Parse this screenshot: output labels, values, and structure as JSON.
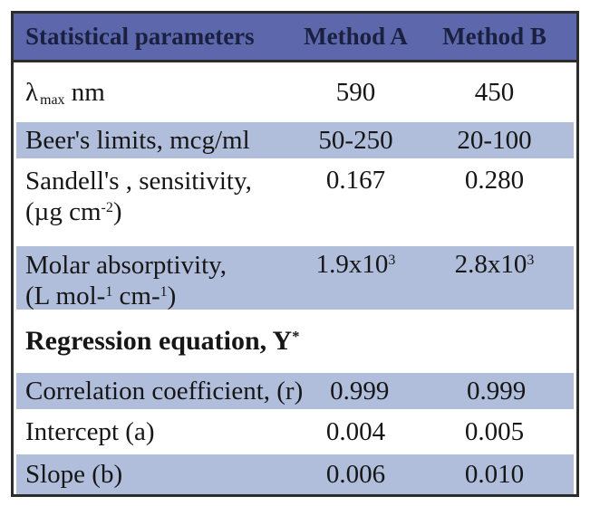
{
  "colors": {
    "header_bg": "#5c68ab",
    "row_alt_bg": "#b0bedc",
    "border": "#2c2c2c",
    "header_text": "#1b2040",
    "body_text": "#161616"
  },
  "table": {
    "columns": [
      "Statistical parameters",
      "Method A",
      "Method B"
    ],
    "rows": {
      "lambda": {
        "sym": "λ",
        "sub": "max",
        "unit": " nm",
        "a": "590",
        "b": "450"
      },
      "beers": {
        "label": "Beer's limits, mcg/ml",
        "a": "50-250",
        "b": "20-100"
      },
      "sandell": {
        "line1": "Sandell's , sensitivity,",
        "line2_open": "(µg cm",
        "line2_sup": "-2",
        "line2_close": ")",
        "a": "0.167",
        "b": "0.280"
      },
      "molar": {
        "line1": "Molar absorptivity,",
        "line2_open": "(L mol-",
        "line2_sup1": "1",
        "line2_mid": " cm-",
        "line2_sup2": "1",
        "line2_close": ")",
        "a_base": "1.9x10",
        "a_sup": "3",
        "b_base": "2.8x10",
        "b_sup": "3"
      },
      "regression": {
        "label": "Regression equation, Y",
        "sup": "*"
      },
      "correlation": {
        "label": "Correlation coefficient, (r)",
        "a": "0.999",
        "b": "0.999"
      },
      "intercept": {
        "label": "Intercept (a)",
        "a": "0.004",
        "b": "0.005"
      },
      "slope": {
        "label": "Slope (b)",
        "a": "0.006",
        "b": "0.010"
      }
    }
  },
  "chart_data": {
    "type": "table",
    "title": "Statistical parameters",
    "columns": [
      "Statistical parameters",
      "Method A",
      "Method B"
    ],
    "rows": [
      [
        "λmax nm",
        "590",
        "450"
      ],
      [
        "Beer's limits, mcg/ml",
        "50-250",
        "20-100"
      ],
      [
        "Sandell's , sensitivity, (µg cm-2)",
        "0.167",
        "0.280"
      ],
      [
        "Molar absorptivity, (L mol-1 cm-1)",
        "1.9x10^3",
        "2.8x10^3"
      ],
      [
        "Regression equation, Y*",
        "",
        ""
      ],
      [
        "Correlation coefficient, (r)",
        "0.999",
        "0.999"
      ],
      [
        "Intercept (a)",
        "0.004",
        "0.005"
      ],
      [
        "Slope (b)",
        "0.006",
        "0.010"
      ]
    ]
  }
}
